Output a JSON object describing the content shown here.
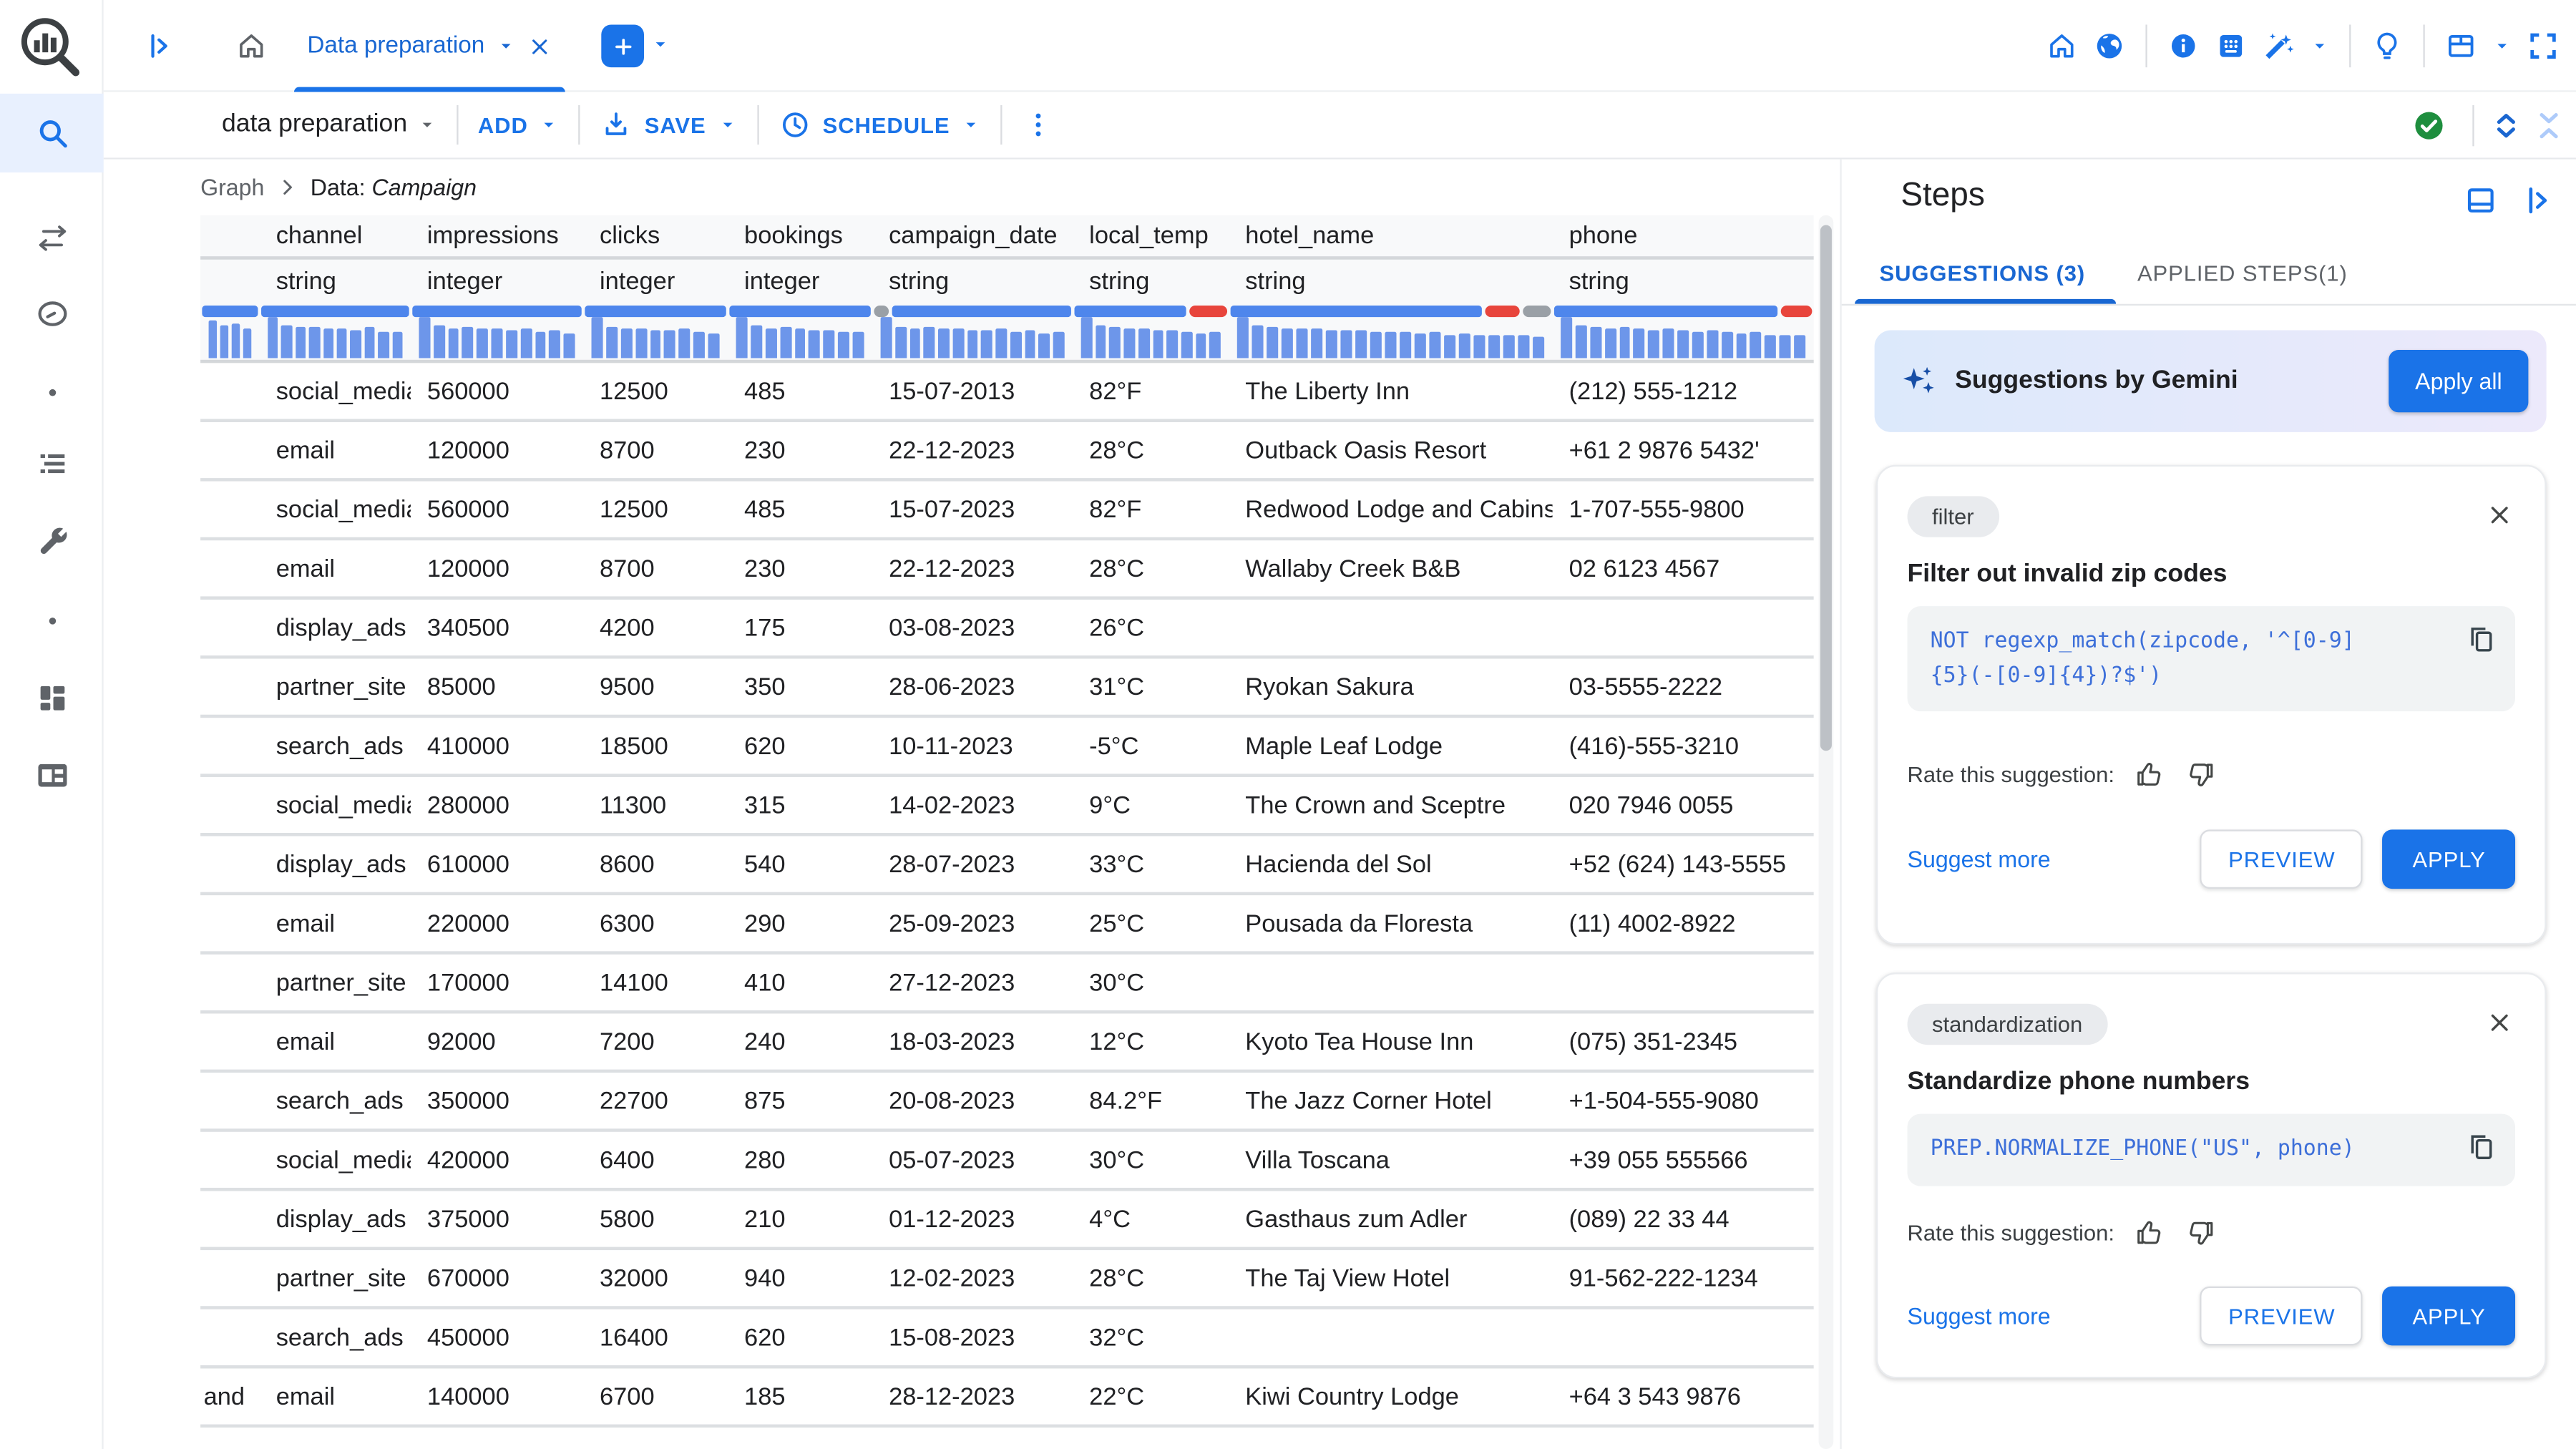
{
  "colors": {
    "accent": "#1a73e8",
    "accent_dark": "#1967d2",
    "valid_blue": "#4e86ec",
    "invalid_red": "#e8453c",
    "missing_gray": "#9aa0a6",
    "hist_blue": "#6d96ea",
    "success_green": "#1e8e3e",
    "code_blue": "#3d6fd9",
    "chip_bg": "#e9ebee",
    "banner_from": "#dce9fb",
    "banner_to": "#ece9fb",
    "text": "#202124",
    "text_secondary": "#5f6368"
  },
  "sidebar": {
    "items": [
      {
        "icon": "search",
        "active": true
      },
      {
        "icon": "compare-arrows",
        "active": false
      },
      {
        "icon": "speedometer",
        "active": false
      },
      {
        "icon": "dot",
        "active": false,
        "small": true
      },
      {
        "icon": "query-list",
        "active": false
      },
      {
        "icon": "wrench",
        "active": false
      },
      {
        "icon": "dot",
        "active": false,
        "small": true
      },
      {
        "icon": "dashboard-blocks",
        "active": false
      },
      {
        "icon": "table-card",
        "active": false
      }
    ]
  },
  "topbar": {
    "tab": {
      "label": "Data preparation"
    },
    "right": [
      {
        "icon": "home"
      },
      {
        "icon": "globe"
      },
      {
        "divider": true
      },
      {
        "icon": "info"
      },
      {
        "icon": "keypad"
      },
      {
        "icon": "magic-wand"
      },
      {
        "icon": "caret-down",
        "small": true
      },
      {
        "divider": true
      },
      {
        "icon": "lightbulb"
      },
      {
        "divider": true
      },
      {
        "icon": "panel-window"
      },
      {
        "icon": "caret-down",
        "small": true
      },
      {
        "icon": "fullscreen"
      }
    ]
  },
  "toolbar": {
    "title": "data preparation",
    "add": "ADD",
    "save": "SAVE",
    "schedule": "SCHEDULE"
  },
  "breadcrumb": {
    "root": "Graph",
    "prefix": "Data:",
    "current": "Campaign"
  },
  "table": {
    "columns": [
      {
        "name": "",
        "type": "",
        "width": 36,
        "validity": [
          [
            "blue",
            1
          ]
        ],
        "hist": [
          0.9,
          0.78,
          0.84,
          0.72
        ]
      },
      {
        "name": "channel",
        "type": "string",
        "width": 92,
        "validity": [
          [
            "blue",
            1
          ]
        ],
        "hist": [
          1,
          0.78,
          0.74,
          0.76,
          0.7,
          0.72,
          0.66,
          0.74,
          0.62,
          0.64
        ]
      },
      {
        "name": "impressions",
        "type": "integer",
        "width": 105,
        "validity": [
          [
            "blue",
            1
          ]
        ],
        "hist": [
          1,
          0.8,
          0.72,
          0.75,
          0.7,
          0.72,
          0.68,
          0.7,
          0.64,
          0.66,
          0.6
        ]
      },
      {
        "name": "clicks",
        "type": "integer",
        "width": 88,
        "validity": [
          [
            "blue",
            1
          ]
        ],
        "hist": [
          1,
          0.75,
          0.72,
          0.7,
          0.68,
          0.66,
          0.7,
          0.64,
          0.6
        ]
      },
      {
        "name": "bookings",
        "type": "integer",
        "width": 88,
        "validity": [
          [
            "blue",
            1
          ]
        ],
        "hist": [
          1,
          0.78,
          0.72,
          0.74,
          0.7,
          0.66,
          0.68,
          0.62,
          0.64
        ]
      },
      {
        "name": "campaign_date",
        "type": "string",
        "width": 122,
        "validity": [
          [
            "gray",
            0.08
          ],
          [
            "blue",
            0.92
          ]
        ],
        "hist": [
          1,
          0.76,
          0.72,
          0.74,
          0.7,
          0.72,
          0.68,
          0.66,
          0.7,
          0.64,
          0.66,
          0.6,
          0.62
        ]
      },
      {
        "name": "local_temp",
        "type": "string",
        "width": 95,
        "validity": [
          [
            "blue",
            0.75
          ],
          [
            "red",
            0.25
          ]
        ],
        "hist": [
          1,
          0.78,
          0.74,
          0.7,
          0.72,
          0.68,
          0.66,
          0.64,
          0.6,
          0.62
        ]
      },
      {
        "name": "hotel_name",
        "type": "string",
        "width": 197,
        "validity": [
          [
            "blue",
            0.8
          ],
          [
            "red",
            0.11
          ],
          [
            "gray",
            0.09
          ]
        ],
        "hist": [
          1,
          0.78,
          0.74,
          0.72,
          0.7,
          0.72,
          0.68,
          0.66,
          0.68,
          0.64,
          0.62,
          0.64,
          0.6,
          0.62,
          0.58,
          0.6,
          0.56,
          0.58,
          0.54,
          0.56,
          0.52
        ]
      },
      {
        "name": "phone",
        "type": "string",
        "width": 159,
        "validity": [
          [
            "blue",
            0.88
          ],
          [
            "red",
            0.12
          ]
        ],
        "hist": [
          1,
          0.8,
          0.76,
          0.72,
          0.74,
          0.7,
          0.68,
          0.7,
          0.66,
          0.64,
          0.66,
          0.62,
          0.6,
          0.62,
          0.58,
          0.56,
          0.58
        ]
      }
    ],
    "rows": [
      [
        "",
        "social_media",
        "560000",
        "12500",
        "485",
        "15-07-2013",
        "82°F",
        "The Liberty Inn",
        "(212) 555-1212"
      ],
      [
        "",
        "email",
        "120000",
        "8700",
        "230",
        "22-12-2023",
        "28°C",
        "Outback Oasis Resort",
        "+61 2 9876 5432'"
      ],
      [
        "",
        "social_media",
        "560000",
        "12500",
        "485",
        "15-07-2023",
        "82°F",
        "Redwood Lodge and Cabins",
        "1-707-555-9800"
      ],
      [
        "",
        "email",
        "120000",
        "8700",
        "230",
        "22-12-2023",
        "28°C",
        "Wallaby Creek B&B",
        "02 6123 4567"
      ],
      [
        "",
        "display_ads",
        "340500",
        "4200",
        "175",
        "03-08-2023",
        "26°C",
        "",
        ""
      ],
      [
        "",
        "partner_site",
        "85000",
        "9500",
        "350",
        "28-06-2023",
        "31°C",
        "Ryokan Sakura",
        "03-5555-2222"
      ],
      [
        "",
        "search_ads",
        "410000",
        "18500",
        "620",
        "10-11-2023",
        "-5°C",
        "Maple Leaf Lodge",
        "(416)-555-3210"
      ],
      [
        "",
        "social_media",
        "280000",
        "11300",
        "315",
        "14-02-2023",
        "9°C",
        "The Crown and Sceptre",
        "020 7946 0055"
      ],
      [
        "",
        "display_ads",
        "610000",
        "8600",
        "540",
        "28-07-2023",
        "33°C",
        "Hacienda del Sol",
        "+52 (624) 143-5555"
      ],
      [
        "",
        "email",
        "220000",
        "6300",
        "290",
        "25-09-2023",
        "25°C",
        "Pousada da Floresta",
        "(11) 4002-8922"
      ],
      [
        "",
        "partner_site",
        "170000",
        "14100",
        "410",
        "27-12-2023",
        "30°C",
        "",
        ""
      ],
      [
        "",
        "email",
        "92000",
        "7200",
        "240",
        "18-03-2023",
        "12°C",
        "Kyoto Tea House Inn",
        "(075) 351-2345"
      ],
      [
        "",
        "search_ads",
        "350000",
        "22700",
        "875",
        "20-08-2023",
        "84.2°F",
        "The Jazz Corner Hotel",
        "+1-504-555-9080"
      ],
      [
        "",
        "social_media",
        "420000",
        "6400",
        "280",
        "05-07-2023",
        "30°C",
        "Villa Toscana",
        "+39 055 555566"
      ],
      [
        "",
        "display_ads",
        "375000",
        "5800",
        "210",
        "01-12-2023",
        "4°C",
        "Gasthaus zum Adler",
        "(089) 22 33 44"
      ],
      [
        "",
        "partner_site",
        "670000",
        "32000",
        "940",
        "12-02-2023",
        "28°C",
        "The Taj View Hotel",
        "91-562-222-1234"
      ],
      [
        "",
        "search_ads",
        "450000",
        "16400",
        "620",
        "15-08-2023",
        "32°C",
        "",
        ""
      ],
      [
        "and",
        "email",
        "140000",
        "6700",
        "185",
        "28-12-2023",
        "22°C",
        "Kiwi Country Lodge",
        "+64 3 543 9876"
      ]
    ]
  },
  "steps": {
    "title": "Steps",
    "tabs": [
      {
        "label": "SUGGESTIONS (3)",
        "active": true
      },
      {
        "label": "APPLIED STEPS(1)",
        "active": false
      }
    ],
    "banner": {
      "title": "Suggestions by Gemini",
      "apply_all": "Apply all"
    },
    "cards": [
      {
        "chip": "filter",
        "title": "Filter out invalid zip codes",
        "code_lines": [
          "NOT regexp_match(zipcode, '^[0-9]",
          "{5}(-[0-9]{4})?$')"
        ],
        "rate_label": "Rate this suggestion:",
        "suggest_more": "Suggest more",
        "preview": "PREVIEW",
        "apply": "APPLY"
      },
      {
        "chip": "standardization",
        "title": "Standardize phone numbers",
        "code_lines": [
          "PREP.NORMALIZE_PHONE(\"US\", phone)"
        ],
        "rate_label": "Rate this suggestion:",
        "suggest_more": "Suggest more",
        "preview": "PREVIEW",
        "apply": "APPLY"
      }
    ]
  }
}
